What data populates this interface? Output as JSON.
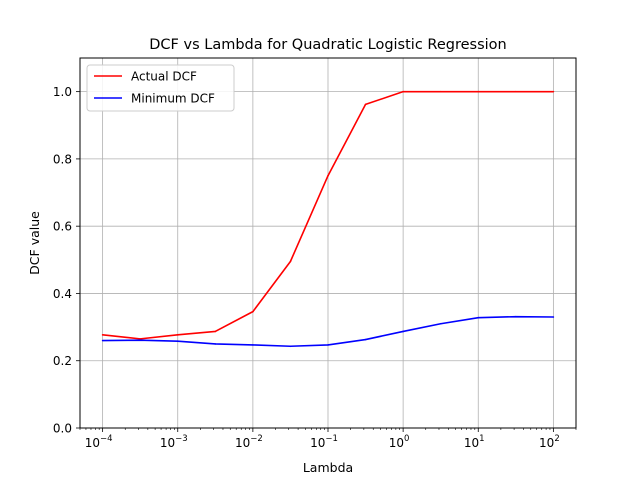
{
  "chart_data": {
    "type": "line",
    "title": "DCF vs Lambda for Quadratic Logistic Regression",
    "xlabel": "Lambda",
    "ylabel": "DCF value",
    "xscale": "log",
    "xlim": [
      5e-05,
      200
    ],
    "ylim": [
      0.0,
      1.1
    ],
    "grid": true,
    "legend_position": "top-left",
    "x": [
      0.0001,
      0.000316,
      0.001,
      0.00316,
      0.01,
      0.0316,
      0.1,
      0.316,
      1,
      3.16,
      10,
      31.6,
      100
    ],
    "series": [
      {
        "name": "Actual DCF",
        "color": "#ff0000",
        "values": [
          0.277,
          0.265,
          0.277,
          0.287,
          0.346,
          0.495,
          0.75,
          0.962,
          1.0,
          1.0,
          1.0,
          1.0,
          1.0
        ]
      },
      {
        "name": "Minimum DCF",
        "color": "#0000ff",
        "values": [
          0.26,
          0.261,
          0.258,
          0.25,
          0.247,
          0.243,
          0.247,
          0.263,
          0.287,
          0.31,
          0.328,
          0.331,
          0.33
        ]
      }
    ],
    "xticks": [
      {
        "value": 0.0001,
        "base": "10",
        "exp": "−4"
      },
      {
        "value": 0.001,
        "base": "10",
        "exp": "−3"
      },
      {
        "value": 0.01,
        "base": "10",
        "exp": "−2"
      },
      {
        "value": 0.1,
        "base": "10",
        "exp": "−1"
      },
      {
        "value": 1,
        "base": "10",
        "exp": "0"
      },
      {
        "value": 10,
        "base": "10",
        "exp": "1"
      },
      {
        "value": 100,
        "base": "10",
        "exp": "2"
      }
    ],
    "yticks": [
      {
        "value": 0.0,
        "label": "0.0"
      },
      {
        "value": 0.2,
        "label": "0.2"
      },
      {
        "value": 0.4,
        "label": "0.4"
      },
      {
        "value": 0.6,
        "label": "0.6"
      },
      {
        "value": 0.8,
        "label": "0.8"
      },
      {
        "value": 1.0,
        "label": "1.0"
      }
    ]
  }
}
